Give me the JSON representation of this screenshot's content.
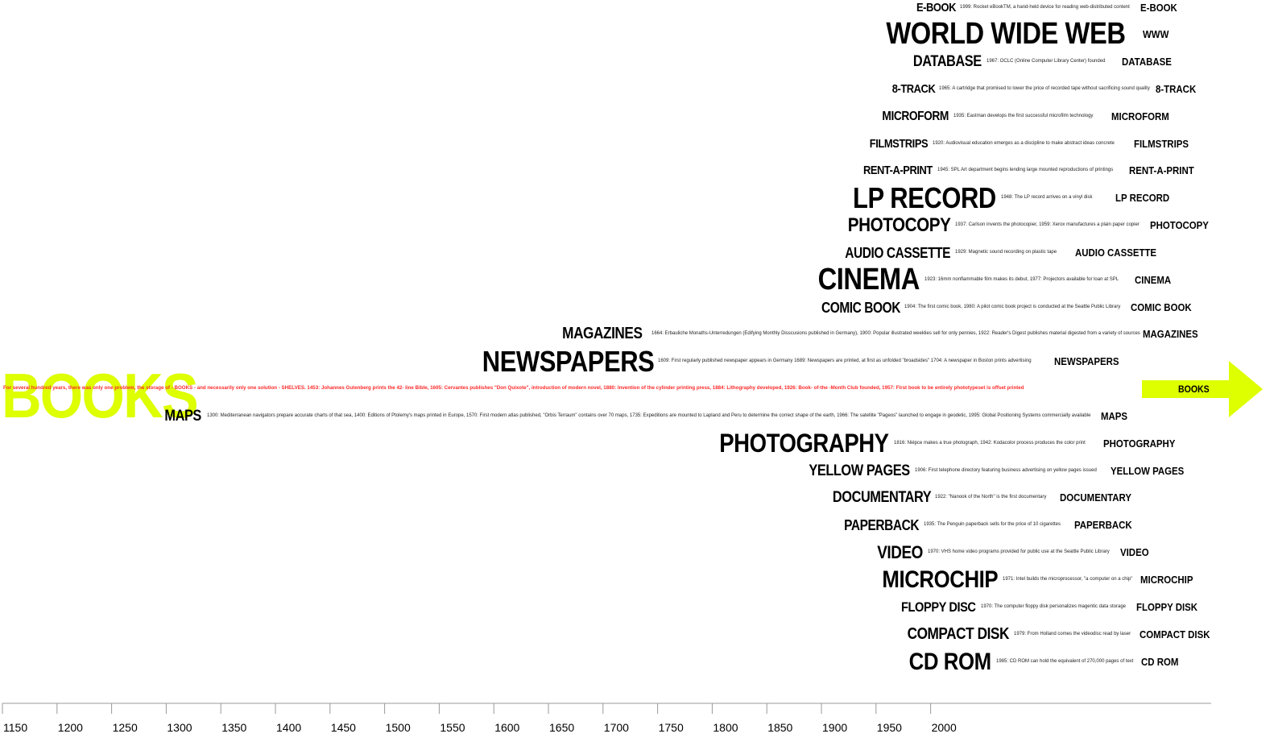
{
  "colors": {
    "accent_yellow": "#ddff00",
    "books_red": "#ff2a2a",
    "text": "#000000"
  },
  "books": {
    "label": "BOOKS",
    "description": "For several hundred years, there was only one problem, the storage of - BOOKS - and necessarily only one solution -  SHELVES.  1453: Johannes Gutenberg prints the 42- line Bible, 1605: Cervantes publishes \"Don Quixote\", introduction of modern novel, 1880: Invention of the cylinder printing press, 1884: Lithography developed, 1926: Book- of-the -Month Club founded, 1957: First book to be entirely phototypeset is offset printed",
    "end_label": "BOOKS"
  },
  "rows": [
    {
      "label": "E-BOOK",
      "desc": "1999: Rocket eBookTM, a hand-held device for reading web-distributed content",
      "end": "E-BOOK"
    },
    {
      "label": "WORLD WIDE WEB",
      "desc": "",
      "end": "WWW"
    },
    {
      "label": "DATABASE",
      "desc": "1967: OCLC (Online Computer Library Center) founded",
      "end": "DATABASE"
    },
    {
      "label": "8-TRACK",
      "desc": "1965: A cartridge that promised to lower the price of recorded tape without sacrificing sound quality",
      "end": "8-TRACK"
    },
    {
      "label": "MICROFORM",
      "desc": "1935: Eastman develops the first successful microfilm technology",
      "end": "MICROFORM"
    },
    {
      "label": "FILMSTRIPS",
      "desc": "1920: Audiovisual education emerges as a discipline to make abstract ideas concrete",
      "end": "FILMSTRIPS"
    },
    {
      "label": "RENT-A-PRINT",
      "desc": "1945: SPL Art department begins lending large mounted reproductions of printings",
      "end": "RENT-A-PRINT"
    },
    {
      "label": "LP RECORD",
      "desc": "1948: The LP record arrives on a vinyl disk",
      "end": "LP RECORD"
    },
    {
      "label": "PHOTOCOPY",
      "desc": "1937: Carlson invents the photocopier, 1959: Xerox manufactures a plain paper copier",
      "end": "PHOTOCOPY"
    },
    {
      "label": "AUDIO CASSETTE",
      "desc": "1929: Magnetic sound recording on plastic tape",
      "end": "AUDIO CASSETTE"
    },
    {
      "label": "CINEMA",
      "desc": "1923: 16mm nonflammable film makes its debut, 1977: Projectors available for loan at SPL",
      "end": "CINEMA"
    },
    {
      "label": "COMIC BOOK",
      "desc": "1904: The first comic book, 1980: A pilot comic book project is conducted at the Seattle Public Library",
      "end": "COMIC BOOK"
    },
    {
      "label": "MAGAZINES",
      "desc": "1664: Erbauliche Monaths-Unterredungen (Edifying Monthly Disscusions published in Germany), 1900: Popular illustrated weeklies sell for only pennies, 1922: Reader's Digest publishes material digested from a variety of sources",
      "end": "MAGAZINES"
    },
    {
      "label": "NEWSPAPERS",
      "desc": "1609: First regularly published newspaper appears in Germany 1689: Newspapers are printed, at first as unfolded \"broadsides\" 1704: A newspaper in Boston prints advertising",
      "end": "NEWSPAPERS"
    },
    {
      "label": "MAPS",
      "desc": "1300: Mediterranean navigators prepare accurate charts of that sea, 1400: Editions of Ptolemy's maps printed in Europe, 1570: First modern atlas published, \"Orbis Terraum\" contains over 70 maps, 1735: Expeditions are mounted to Lapland and Peru to determine the correct shape of the earth, 1966: The satellite \"Pageos\" launched to engage in  geodetic, 1995: Global Positioning Systems commercially available",
      "end": "MAPS"
    },
    {
      "label": "PHOTOGRAPHY",
      "desc": "1816: Niépce makes a true photograph, 1942: Kodacolor process produces the color print",
      "end": "PHOTOGRAPHY"
    },
    {
      "label": "YELLOW PAGES",
      "desc": "1906: First telephone directory featuring business advertising on yellow pages issued",
      "end": "YELLOW PAGES"
    },
    {
      "label": "DOCUMENTARY",
      "desc": "1922: \"Nanook of the North\" is the first documentary",
      "end": "DOCUMENTARY"
    },
    {
      "label": "PAPERBACK",
      "desc": "1935: The Penguin paperback sells for the price of 10 cigarettes",
      "end": "PAPERBACK"
    },
    {
      "label": "VIDEO",
      "desc": "1970: VHS home video programs provided for public use at the Seattle Public Library",
      "end": "VIDEO"
    },
    {
      "label": "MICROCHIP",
      "desc": "1971: Intel builds the microprocessor, \"a computer on a chip\"",
      "end": "MICROCHIP"
    },
    {
      "label": "FLOPPY DISC",
      "desc": "1970: The computer floppy disk personalizes magentic data storage",
      "end": "FLOPPY DISK"
    },
    {
      "label": "COMPACT DISK",
      "desc": "1979: From Holland comes the videodisc read by laser",
      "end": "COMPACT DISK"
    },
    {
      "label": "CD ROM",
      "desc": "1985: CD ROM can hold the equivalent of 270,000 pages of text",
      "end": "CD ROM"
    }
  ],
  "axis": {
    "ticks": [
      "1150",
      "1200",
      "1250",
      "1300",
      "1350",
      "1400",
      "1450",
      "1500",
      "1550",
      "1600",
      "1650",
      "1700",
      "1750",
      "1800",
      "1850",
      "1900",
      "1950",
      "2000"
    ]
  }
}
